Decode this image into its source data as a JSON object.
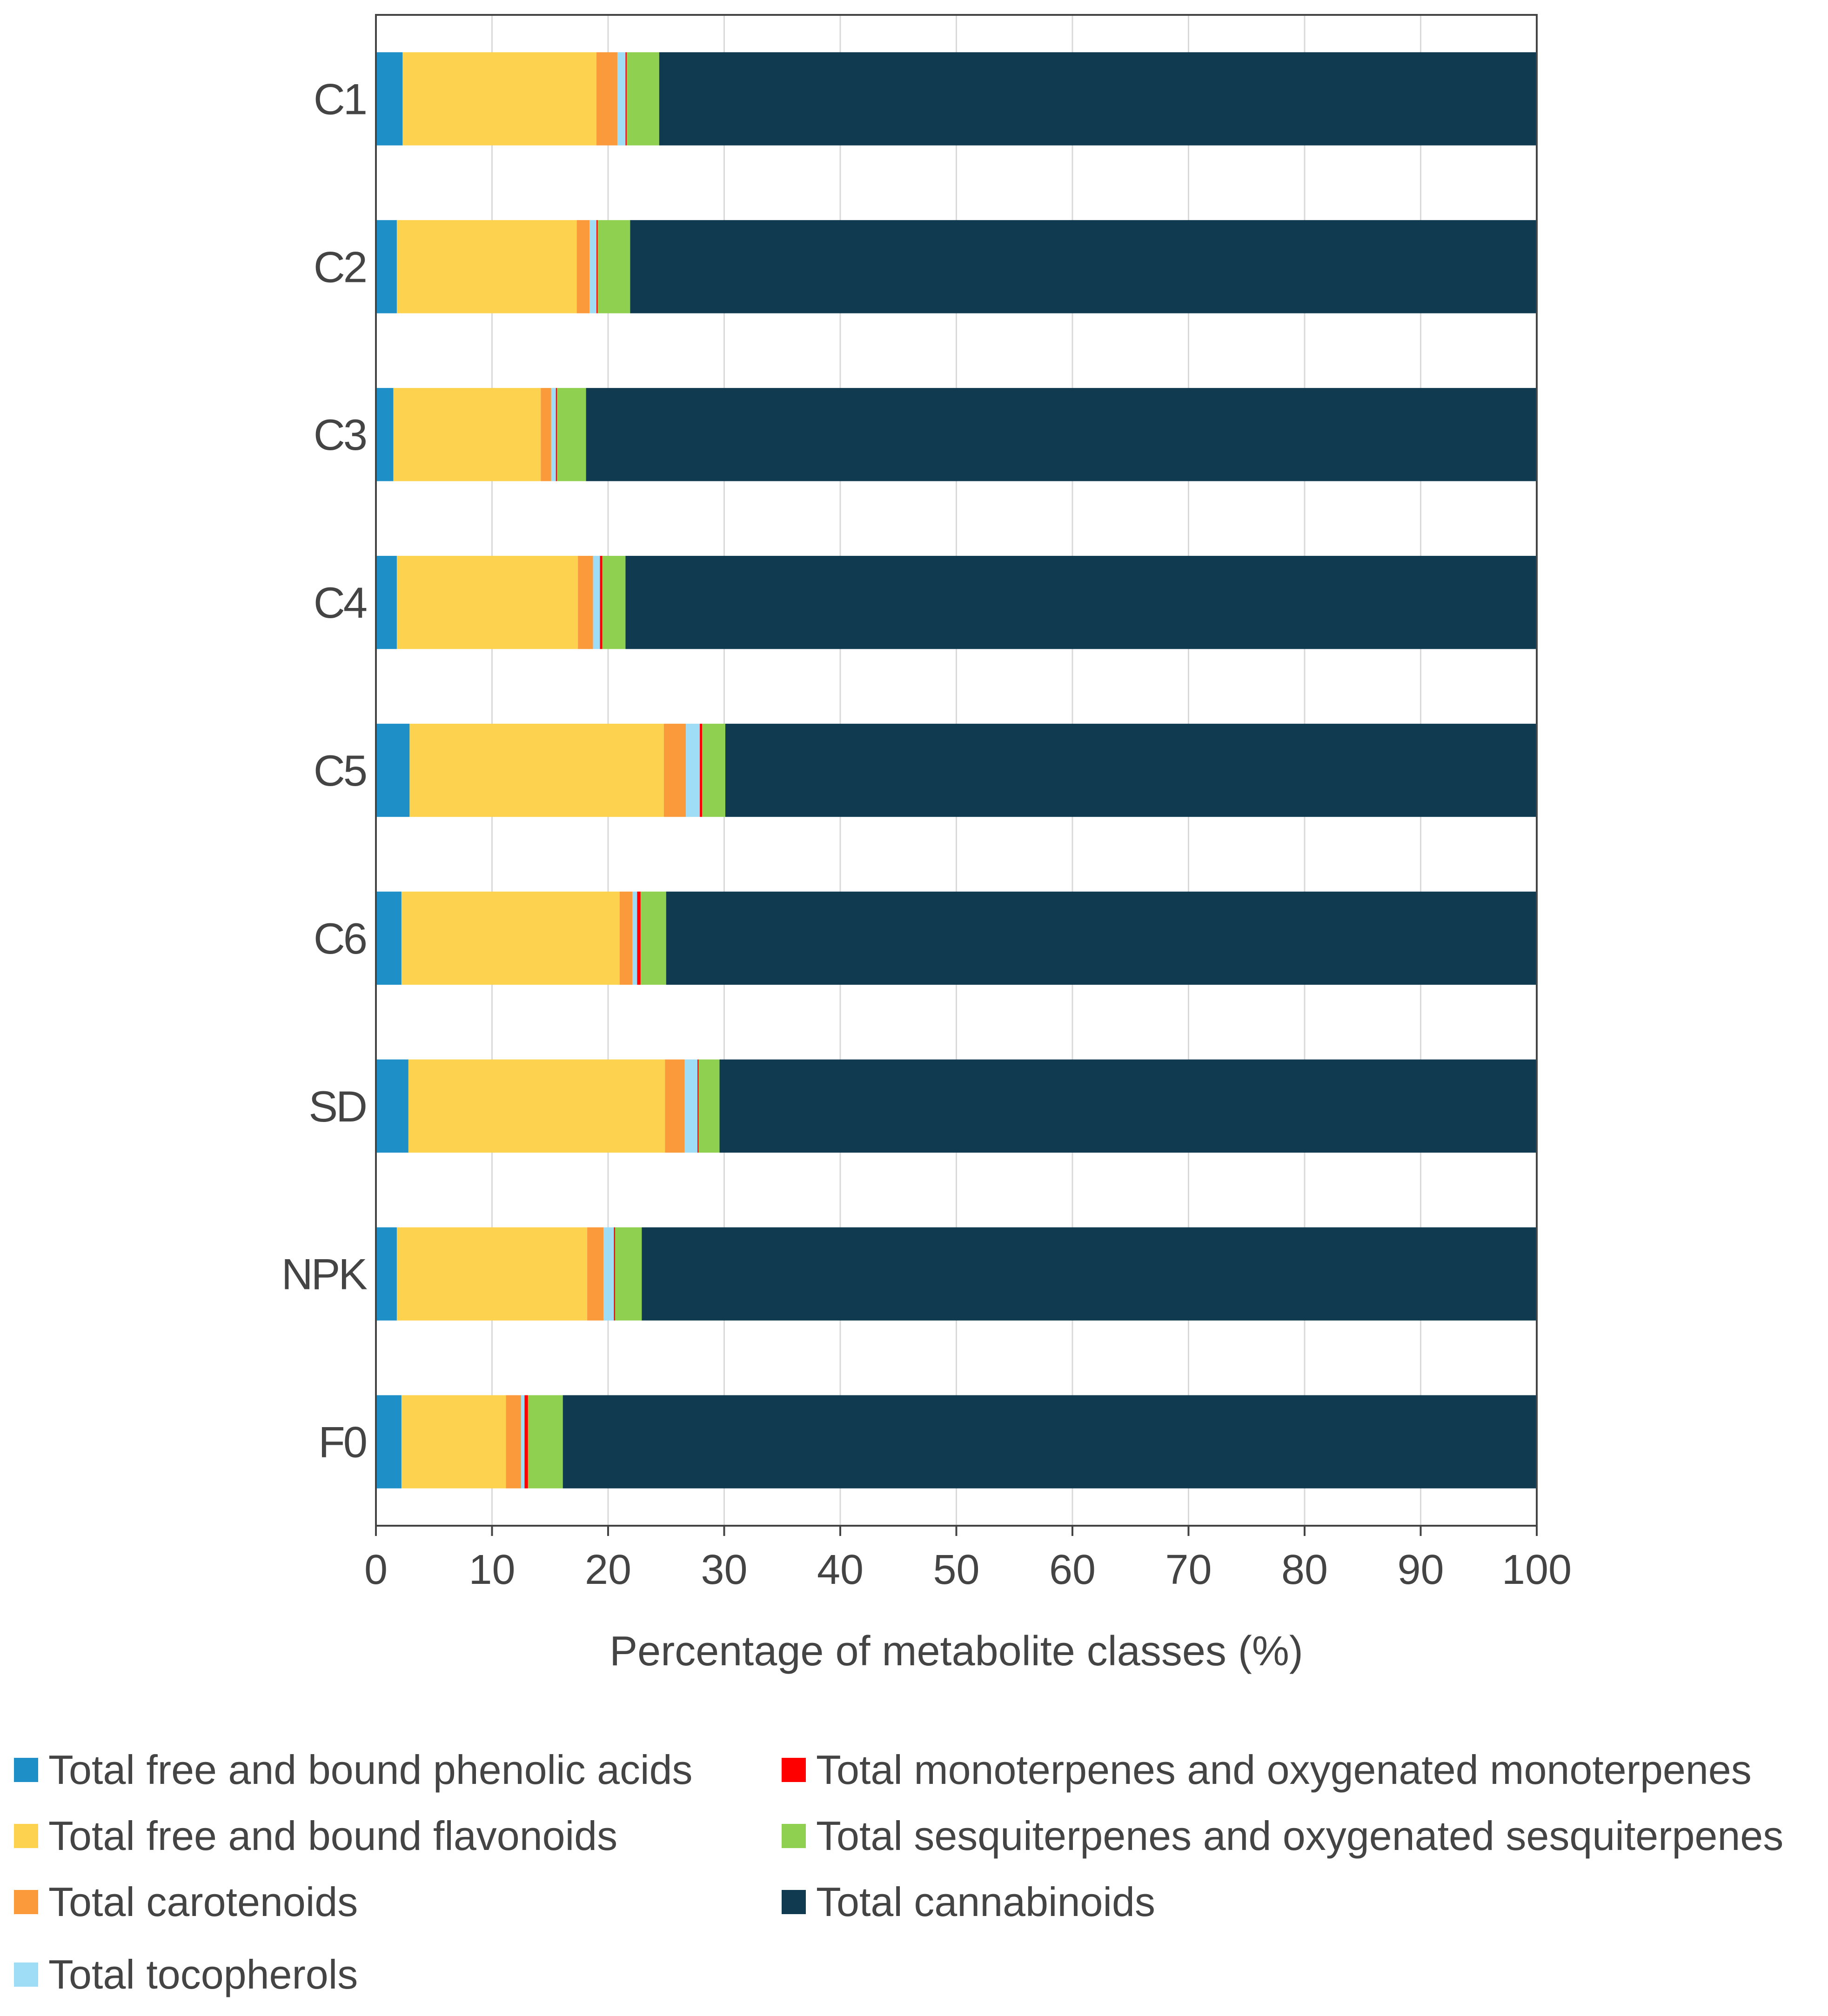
{
  "chart_data": {
    "type": "bar",
    "orientation": "horizontal",
    "stacked": true,
    "categories": [
      "C1",
      "C2",
      "C3",
      "C4",
      "C5",
      "C6",
      "SD",
      "NPK",
      "F0"
    ],
    "xlabel": "Percentage of metabolite classes (%)",
    "xlim": [
      0,
      100
    ],
    "xticks": [
      0,
      10,
      20,
      30,
      40,
      50,
      60,
      70,
      80,
      90,
      100
    ],
    "grid": "vertical",
    "legend_position": "bottom",
    "series": [
      {
        "name": "Total free and bound phenolic acids",
        "color": "#1f8fc8",
        "values": [
          2.3,
          1.8,
          1.5,
          1.8,
          2.9,
          2.2,
          2.8,
          1.8,
          2.2
        ]
      },
      {
        "name": "Total free and bound flavonoids",
        "color": "#fdd24e",
        "values": [
          16.7,
          15.5,
          12.7,
          15.6,
          21.9,
          18.8,
          22.1,
          16.4,
          9.0
        ]
      },
      {
        "name": "Total carotenoids",
        "color": "#fa9a3b",
        "values": [
          1.8,
          1.1,
          0.9,
          1.3,
          1.9,
          1.1,
          1.7,
          1.4,
          1.3
        ]
      },
      {
        "name": "Total tocopherols",
        "color": "#9fdcf5",
        "values": [
          0.7,
          0.6,
          0.4,
          0.6,
          1.2,
          0.4,
          1.1,
          0.9,
          0.3
        ]
      },
      {
        "name": "Total monoterpenes and oxygenated monoterpenes",
        "color": "#ff0000",
        "values": [
          0.1,
          0.1,
          0.1,
          0.2,
          0.2,
          0.3,
          0.1,
          0.1,
          0.3
        ]
      },
      {
        "name": "Total sesquiterpenes and oxygenated sesquiterpenes",
        "color": "#90d050",
        "values": [
          2.8,
          2.8,
          2.5,
          2.0,
          2.0,
          2.2,
          1.8,
          2.3,
          3.0
        ]
      },
      {
        "name": "Total cannabinoids",
        "color": "#0f3a4f",
        "values": [
          75.6,
          78.1,
          81.9,
          78.5,
          69.9,
          75.0,
          70.4,
          77.1,
          83.9
        ]
      }
    ]
  }
}
